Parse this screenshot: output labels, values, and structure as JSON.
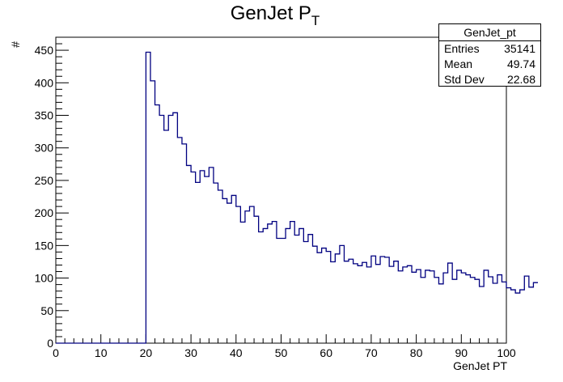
{
  "chart_data": {
    "type": "histogram",
    "title": "GenJet P",
    "title_subscript": "T",
    "xlabel": "GenJet PT",
    "ylabel": "#",
    "xlim": [
      0,
      100
    ],
    "ylim": [
      0,
      470
    ],
    "x_ticks": [
      0,
      10,
      20,
      30,
      40,
      50,
      60,
      70,
      80,
      90,
      100
    ],
    "y_ticks": [
      0,
      50,
      100,
      150,
      200,
      250,
      300,
      350,
      400,
      450
    ],
    "bin_width": 1,
    "bins_start": 0,
    "series": [
      {
        "color": "#000080",
        "values": [
          0,
          0,
          0,
          0,
          0,
          0,
          0,
          0,
          0,
          0,
          0,
          0,
          0,
          0,
          0,
          0,
          0,
          0,
          0,
          0,
          447,
          403,
          366,
          350,
          327,
          350,
          354,
          316,
          306,
          273,
          263,
          247,
          265,
          256,
          270,
          246,
          235,
          222,
          215,
          227,
          210,
          186,
          203,
          210,
          195,
          171,
          176,
          183,
          187,
          161,
          161,
          176,
          187,
          166,
          176,
          156,
          167,
          149,
          139,
          146,
          141,
          125,
          137,
          150,
          126,
          129,
          122,
          119,
          124,
          117,
          134,
          121,
          133,
          132,
          118,
          126,
          111,
          117,
          119,
          109,
          113,
          101,
          112,
          111,
          101,
          91,
          108,
          123,
          98,
          112,
          108,
          105,
          101,
          98,
          87,
          112,
          102,
          92,
          105,
          94,
          85,
          82,
          77,
          82,
          103,
          86,
          93
        ]
      }
    ],
    "stats_box": {
      "title": "GenJet_pt",
      "rows": [
        {
          "label": "Entries",
          "value": "35141"
        },
        {
          "label": "Mean",
          "value": "49.74"
        },
        {
          "label": "Std Dev",
          "value": "22.68"
        }
      ]
    }
  }
}
